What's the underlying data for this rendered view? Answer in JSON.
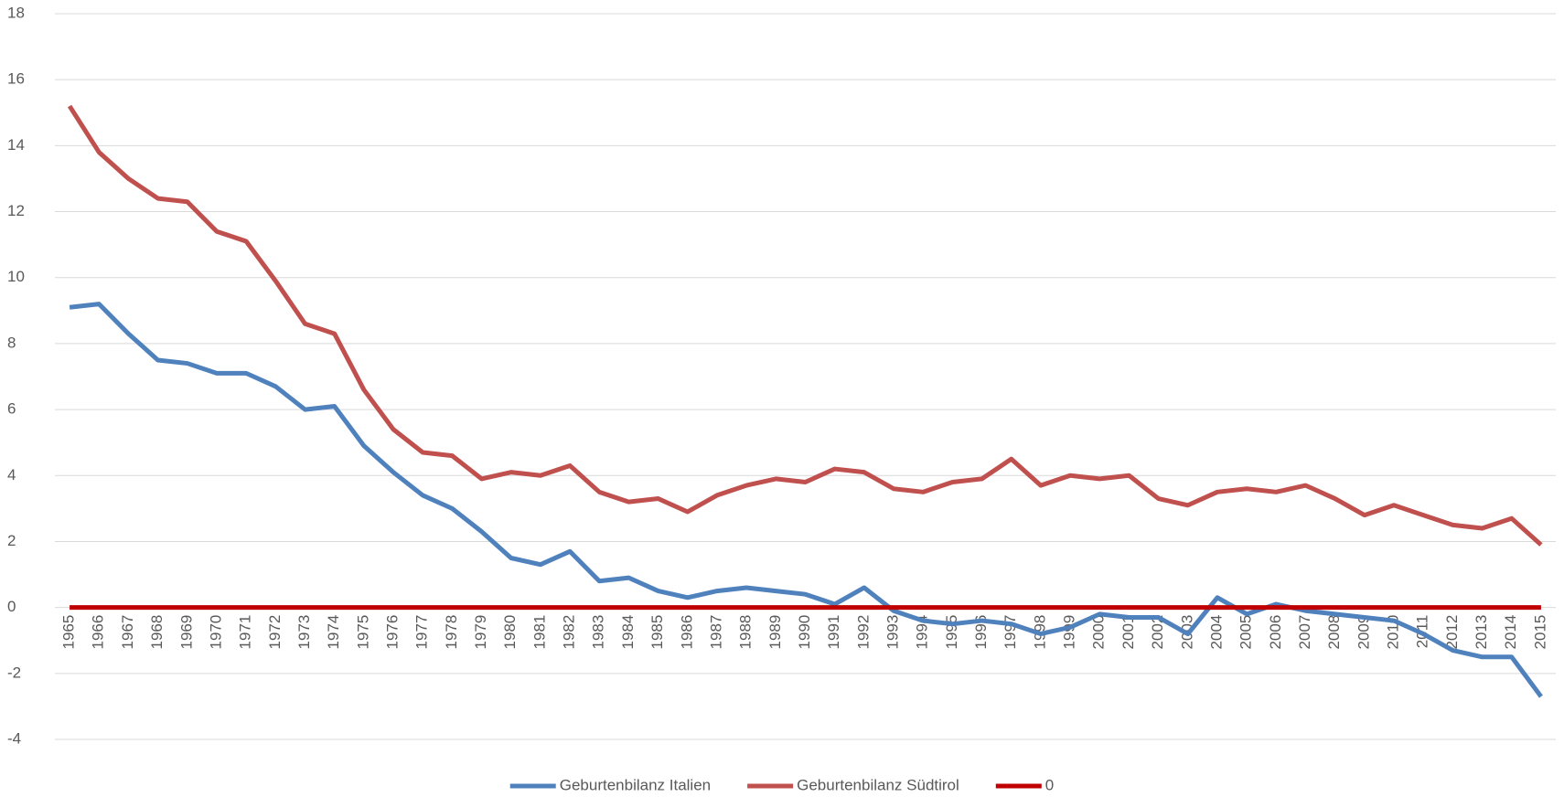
{
  "chart_data": {
    "type": "line",
    "categories": [
      "1965",
      "1966",
      "1967",
      "1968",
      "1969",
      "1970",
      "1971",
      "1972",
      "1973",
      "1974",
      "1975",
      "1976",
      "1977",
      "1978",
      "1979",
      "1980",
      "1981",
      "1982",
      "1983",
      "1984",
      "1985",
      "1986",
      "1987",
      "1988",
      "1989",
      "1990",
      "1991",
      "1992",
      "1993",
      "1994",
      "1995",
      "1996",
      "1997",
      "1998",
      "1999",
      "2000",
      "2001",
      "2002",
      "2003",
      "2004",
      "2005",
      "2006",
      "2007",
      "2008",
      "2009",
      "2010",
      "2011",
      "2012",
      "2013",
      "2014",
      "2015"
    ],
    "series": [
      {
        "name": "Geburtenbilanz Italien",
        "color": "#4f81bd",
        "values": [
          9.1,
          9.2,
          8.3,
          7.5,
          7.4,
          7.1,
          7.1,
          6.7,
          6.0,
          6.1,
          4.9,
          4.1,
          3.4,
          3.0,
          2.3,
          1.5,
          1.3,
          1.7,
          0.8,
          0.9,
          0.5,
          0.3,
          0.5,
          0.6,
          0.5,
          0.4,
          0.1,
          0.6,
          -0.1,
          -0.4,
          -0.5,
          -0.4,
          -0.5,
          -0.8,
          -0.6,
          -0.2,
          -0.3,
          -0.3,
          -0.8,
          0.3,
          -0.2,
          0.1,
          -0.1,
          -0.2,
          -0.3,
          -0.4,
          -0.8,
          -1.3,
          -1.5,
          -1.5,
          -2.7
        ]
      },
      {
        "name": "Geburtenbilanz Südtirol",
        "color": "#c0504d",
        "values": [
          15.2,
          13.8,
          13.0,
          12.4,
          12.3,
          11.4,
          11.1,
          9.9,
          8.6,
          8.3,
          6.6,
          5.4,
          4.7,
          4.6,
          3.9,
          4.1,
          4.0,
          4.3,
          3.5,
          3.2,
          3.3,
          2.9,
          3.4,
          3.7,
          3.9,
          3.8,
          4.2,
          4.1,
          3.6,
          3.5,
          3.8,
          3.9,
          4.5,
          3.7,
          4.0,
          3.9,
          4.0,
          3.3,
          3.1,
          3.5,
          3.6,
          3.5,
          3.7,
          3.3,
          2.8,
          3.1,
          2.8,
          2.5,
          2.4,
          2.7,
          1.9
        ]
      },
      {
        "name": "0",
        "color": "#c00000",
        "values": [
          0,
          0,
          0,
          0,
          0,
          0,
          0,
          0,
          0,
          0,
          0,
          0,
          0,
          0,
          0,
          0,
          0,
          0,
          0,
          0,
          0,
          0,
          0,
          0,
          0,
          0,
          0,
          0,
          0,
          0,
          0,
          0,
          0,
          0,
          0,
          0,
          0,
          0,
          0,
          0,
          0,
          0,
          0,
          0,
          0,
          0,
          0,
          0,
          0,
          0,
          0
        ]
      }
    ],
    "ylim": [
      -4,
      18
    ],
    "yticks": [
      -4,
      -2,
      0,
      2,
      4,
      6,
      8,
      10,
      12,
      14,
      16,
      18
    ],
    "grid": true,
    "legend": "bottom"
  }
}
